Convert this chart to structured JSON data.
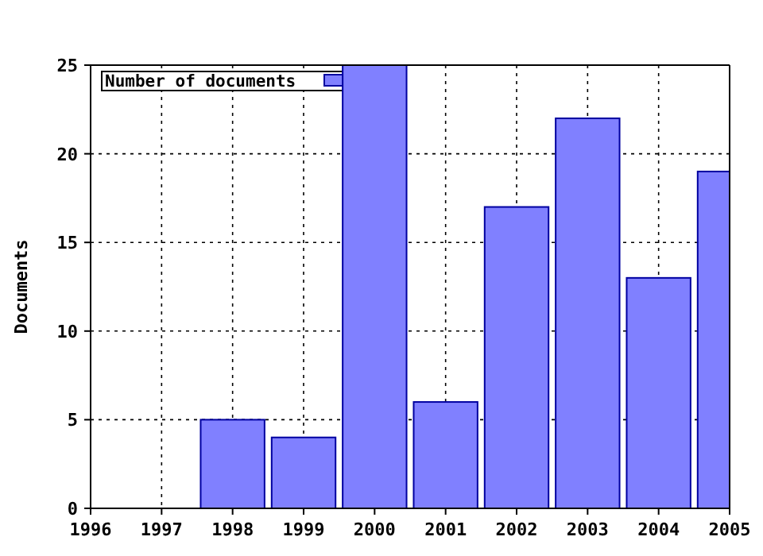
{
  "chart_data": {
    "type": "bar",
    "ylabel": "Documents",
    "x": [
      1998,
      1999,
      2000,
      2001,
      2002,
      2003,
      2004,
      2005
    ],
    "series": [
      {
        "name": "Number of documents",
        "color": "#8080ff",
        "values": [
          5,
          4,
          25,
          6,
          17,
          22,
          13,
          19
        ]
      }
    ],
    "xlim": [
      1996,
      2005
    ],
    "xticks": [
      1996,
      1997,
      1998,
      1999,
      2000,
      2001,
      2002,
      2003,
      2004,
      2005
    ],
    "ylim": [
      0,
      25
    ],
    "yticks": [
      0,
      5,
      10,
      15,
      20,
      25
    ],
    "grid": true,
    "legend": "top left"
  }
}
